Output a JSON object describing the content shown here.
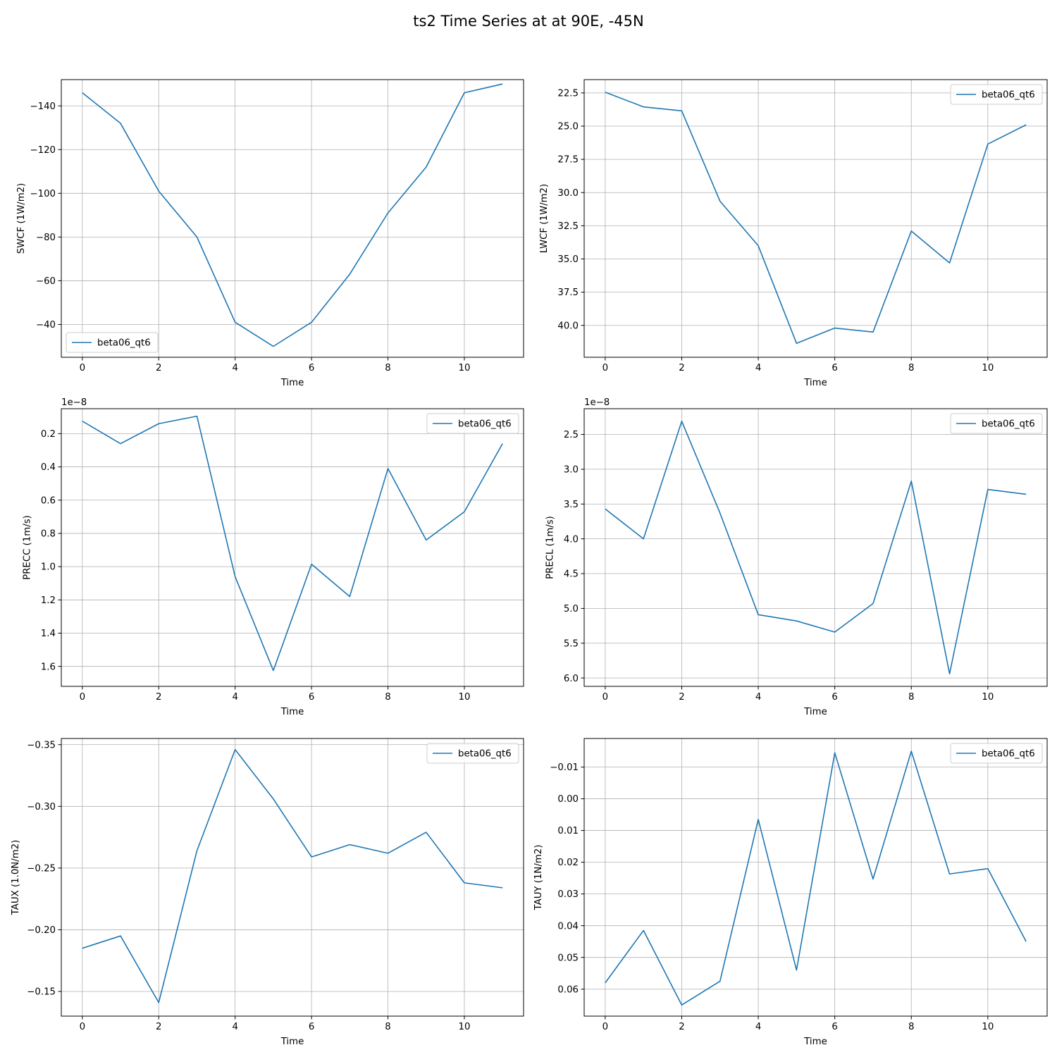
{
  "figure": {
    "suptitle": "ts2 Time Series at at 90E, -45N",
    "line_color": "#1f77b4",
    "grid_color": "#b0b0b0"
  },
  "chart_data": [
    {
      "id": "swcf",
      "type": "line",
      "title": "",
      "xlabel": "Time",
      "ylabel": "SWCF (1W/m2)",
      "offset_text": "",
      "y_inverted": true,
      "xlim": [
        -0.55,
        11.55
      ],
      "ylim": [
        -152,
        -25
      ],
      "xticks": [
        0,
        2,
        4,
        6,
        8,
        10
      ],
      "xtick_labels": [
        "0",
        "2",
        "4",
        "6",
        "8",
        "10"
      ],
      "yticks": [
        -140,
        -120,
        -100,
        -80,
        -60,
        -40
      ],
      "ytick_labels": [
        "−140",
        "−120",
        "−100",
        "−80",
        "−60",
        "−40"
      ],
      "legend_position": "lower left",
      "grid": true,
      "x": [
        0,
        1,
        2,
        3,
        4,
        5,
        6,
        7,
        8,
        9,
        10,
        11
      ],
      "series": [
        {
          "name": "beta06_qt6",
          "values": [
            -146,
            -132,
            -101,
            -80,
            -41,
            -30,
            -41,
            -63,
            -91,
            -112,
            -146,
            -150
          ]
        }
      ]
    },
    {
      "id": "lwcf",
      "type": "line",
      "title": "",
      "xlabel": "Time",
      "ylabel": "LWCF (1W/m2)",
      "offset_text": "",
      "y_inverted": true,
      "xlim": [
        -0.55,
        11.55
      ],
      "ylim": [
        21.5,
        42.4
      ],
      "xticks": [
        0,
        2,
        4,
        6,
        8,
        10
      ],
      "xtick_labels": [
        "0",
        "2",
        "4",
        "6",
        "8",
        "10"
      ],
      "yticks": [
        22.5,
        25.0,
        27.5,
        30.0,
        32.5,
        35.0,
        37.5,
        40.0
      ],
      "ytick_labels": [
        "22.5",
        "25.0",
        "27.5",
        "30.0",
        "32.5",
        "35.0",
        "37.5",
        "40.0"
      ],
      "legend_position": "upper right",
      "grid": true,
      "x": [
        0,
        1,
        2,
        3,
        4,
        5,
        6,
        7,
        8,
        9,
        10,
        11
      ],
      "series": [
        {
          "name": "beta06_qt6",
          "values": [
            22.45,
            23.55,
            23.85,
            30.65,
            34.0,
            41.35,
            40.2,
            40.5,
            32.9,
            35.3,
            26.35,
            24.9
          ]
        }
      ]
    },
    {
      "id": "precc",
      "type": "line",
      "title": "",
      "xlabel": "Time",
      "ylabel": "PRECC (1m/s)",
      "offset_text": "1e−8",
      "y_inverted": true,
      "xlim": [
        -0.55,
        11.55
      ],
      "ylim": [
        0.05,
        1.72
      ],
      "xticks": [
        0,
        2,
        4,
        6,
        8,
        10
      ],
      "xtick_labels": [
        "0",
        "2",
        "4",
        "6",
        "8",
        "10"
      ],
      "yticks": [
        0.2,
        0.4,
        0.6,
        0.8,
        1.0,
        1.2,
        1.4,
        1.6
      ],
      "ytick_labels": [
        "0.2",
        "0.4",
        "0.6",
        "0.8",
        "1.0",
        "1.2",
        "1.4",
        "1.6"
      ],
      "legend_position": "upper right",
      "grid": true,
      "x": [
        0,
        1,
        2,
        3,
        4,
        5,
        6,
        7,
        8,
        9,
        10,
        11
      ],
      "series": [
        {
          "name": "beta06_qt6",
          "values": [
            0.125,
            0.26,
            0.14,
            0.095,
            1.06,
            1.625,
            0.985,
            1.18,
            0.41,
            0.84,
            0.67,
            0.26
          ]
        }
      ]
    },
    {
      "id": "precl",
      "type": "line",
      "title": "",
      "xlabel": "Time",
      "ylabel": "PRECL (1m/s)",
      "offset_text": "1e−8",
      "y_inverted": true,
      "xlim": [
        -0.55,
        11.55
      ],
      "ylim": [
        2.13,
        6.12
      ],
      "xticks": [
        0,
        2,
        4,
        6,
        8,
        10
      ],
      "xtick_labels": [
        "0",
        "2",
        "4",
        "6",
        "8",
        "10"
      ],
      "yticks": [
        2.5,
        3.0,
        3.5,
        4.0,
        4.5,
        5.0,
        5.5,
        6.0
      ],
      "ytick_labels": [
        "2.5",
        "3.0",
        "3.5",
        "4.0",
        "4.5",
        "5.0",
        "5.5",
        "6.0"
      ],
      "legend_position": "upper right",
      "grid": true,
      "x": [
        0,
        1,
        2,
        3,
        4,
        5,
        6,
        7,
        8,
        9,
        10,
        11
      ],
      "series": [
        {
          "name": "beta06_qt6",
          "values": [
            3.57,
            4.0,
            2.31,
            3.63,
            5.09,
            5.18,
            5.34,
            4.93,
            3.17,
            5.94,
            3.29,
            3.36
          ]
        }
      ]
    },
    {
      "id": "taux",
      "type": "line",
      "title": "",
      "xlabel": "Time",
      "ylabel": "TAUX (1.0N/m2)",
      "offset_text": "",
      "y_inverted": true,
      "xlim": [
        -0.55,
        11.55
      ],
      "ylim": [
        -0.355,
        -0.13
      ],
      "xticks": [
        0,
        2,
        4,
        6,
        8,
        10
      ],
      "xtick_labels": [
        "0",
        "2",
        "4",
        "6",
        "8",
        "10"
      ],
      "yticks": [
        -0.35,
        -0.3,
        -0.25,
        -0.2,
        -0.15
      ],
      "ytick_labels": [
        "−0.35",
        "−0.30",
        "−0.25",
        "−0.20",
        "−0.15"
      ],
      "legend_position": "upper right",
      "grid": true,
      "x": [
        0,
        1,
        2,
        3,
        4,
        5,
        6,
        7,
        8,
        9,
        10,
        11
      ],
      "series": [
        {
          "name": "beta06_qt6",
          "values": [
            -0.185,
            -0.195,
            -0.141,
            -0.264,
            -0.346,
            -0.306,
            -0.259,
            -0.269,
            -0.262,
            -0.279,
            -0.238,
            -0.234
          ]
        }
      ]
    },
    {
      "id": "tauy",
      "type": "line",
      "title": "",
      "xlabel": "Time",
      "ylabel": "TAUY (1N/m2)",
      "offset_text": "",
      "y_inverted": true,
      "xlim": [
        -0.55,
        11.55
      ],
      "ylim": [
        -0.019,
        0.0685
      ],
      "xticks": [
        0,
        2,
        4,
        6,
        8,
        10
      ],
      "xtick_labels": [
        "0",
        "2",
        "4",
        "6",
        "8",
        "10"
      ],
      "yticks": [
        -0.01,
        0.0,
        0.01,
        0.02,
        0.03,
        0.04,
        0.05,
        0.06
      ],
      "ytick_labels": [
        "−0.01",
        "0.00",
        "0.01",
        "0.02",
        "0.03",
        "0.04",
        "0.05",
        "0.06"
      ],
      "legend_position": "upper right",
      "grid": true,
      "x": [
        0,
        1,
        2,
        3,
        4,
        5,
        6,
        7,
        8,
        9,
        10,
        11
      ],
      "series": [
        {
          "name": "beta06_qt6",
          "values": [
            0.058,
            0.0415,
            0.065,
            0.0575,
            0.0065,
            0.054,
            -0.0145,
            0.0253,
            -0.015,
            0.0237,
            0.022,
            0.045
          ]
        }
      ]
    }
  ]
}
